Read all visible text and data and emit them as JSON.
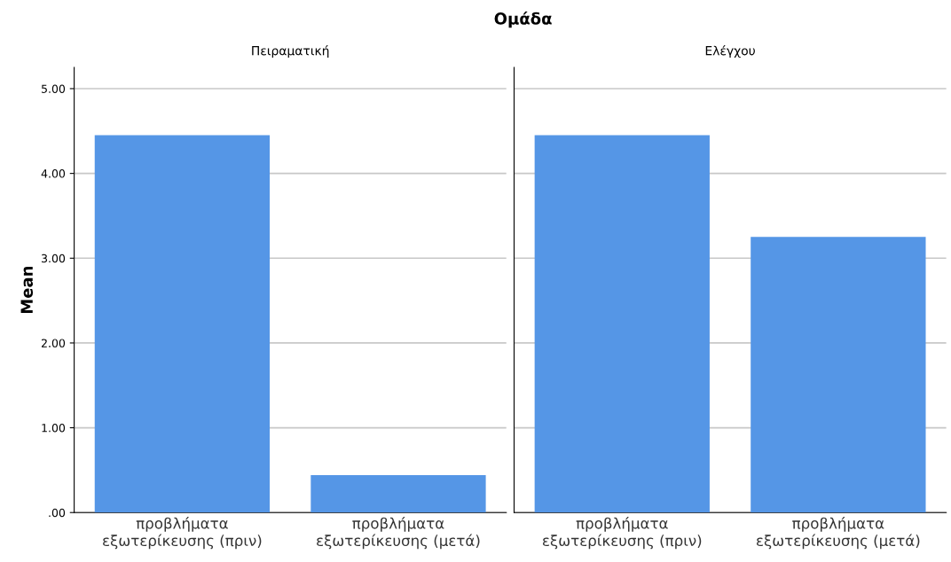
{
  "chart_data": [
    {
      "type": "bar",
      "title": "Πειραματική",
      "annotations": [
        "Ομάδα"
      ],
      "ylabel": "Mean",
      "categories": [
        "προβλήματα\nεξωτερίκευσης (πριν)",
        "προβλήματα\nεξωτερίκευσης (μετά)"
      ],
      "values": [
        4.45,
        0.44
      ],
      "color": "#5596e6",
      "ylim": [
        0,
        5.25
      ],
      "yticks": [
        {
          "value": 0,
          "label": ".00"
        },
        {
          "value": 1,
          "label": "1.00"
        },
        {
          "value": 2,
          "label": "2.00"
        },
        {
          "value": 3,
          "label": "3.00"
        },
        {
          "value": 4,
          "label": "4.00"
        },
        {
          "value": 5,
          "label": "5.00"
        }
      ],
      "grid": "y"
    },
    {
      "type": "bar",
      "title": "Ελέγχου",
      "categories": [
        "προβλήματα\nεξωτερίκευσης (πριν)",
        "προβλήματα\nεξωτερίκευσης (μετά)"
      ],
      "values": [
        4.45,
        3.25
      ],
      "color": "#5596e6",
      "ylim": [
        0,
        5.25
      ],
      "yticks": [
        {
          "value": 0,
          "label": null
        },
        {
          "value": 1,
          "label": null
        },
        {
          "value": 2,
          "label": null
        },
        {
          "value": 3,
          "label": null
        },
        {
          "value": 4,
          "label": null
        },
        {
          "value": 5,
          "label": null
        }
      ],
      "grid": "y",
      "tick_labels": "x"
    }
  ]
}
